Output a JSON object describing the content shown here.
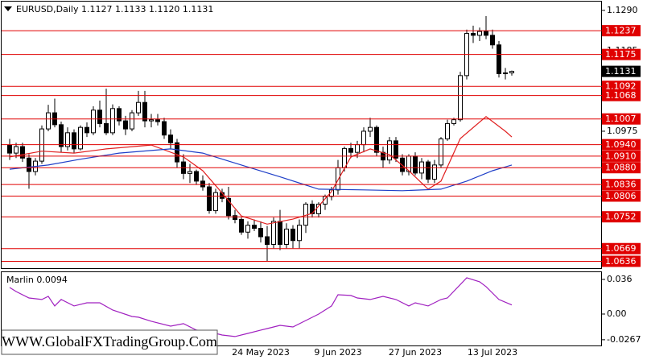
{
  "chart_data": [
    {
      "type": "candlestick",
      "title": "EURUSD,Daily  1.1127 1.1133 1.1120 1.1131",
      "categories": [
        null,
        null,
        null,
        null,
        null,
        null,
        null,
        null,
        null,
        null,
        null,
        null,
        null,
        null,
        null,
        null,
        null,
        null,
        null,
        null,
        null,
        null,
        null,
        null,
        null,
        null,
        null,
        null,
        null,
        null,
        null,
        null,
        null,
        null,
        null,
        null,
        null,
        null,
        null,
        "24 May 2023",
        null,
        null,
        null,
        null,
        null,
        null,
        null,
        null,
        null,
        null,
        null,
        "9 Jun 2023",
        null,
        null,
        null,
        null,
        null,
        null,
        null,
        null,
        null,
        null,
        null,
        "27 Jun 2023",
        null,
        null,
        null,
        null,
        null,
        null,
        null,
        null,
        null,
        null,
        null,
        "13 Jul 2023",
        null,
        null,
        null
      ],
      "open": [
        1.0939,
        1.0918,
        1.0935,
        1.0905,
        1.087,
        1.0897,
        1.0981,
        1.1023,
        1.0992,
        1.0935,
        1.0971,
        1.0929,
        1.0985,
        1.0971,
        1.103,
        1.0995,
        1.0971,
        1.1034,
        1.1002,
        1.0981,
        1.1023,
        1.105,
        1.1002,
        1.1005,
        1.1,
        1.0965,
        1.0945,
        1.0895,
        1.0865,
        1.087,
        1.0845,
        1.083,
        1.0768,
        1.0815,
        1.08,
        1.0755,
        1.0745,
        1.0712,
        1.073,
        1.0722,
        1.07,
        1.068,
        1.074,
        1.068,
        1.072,
        1.069,
        1.073,
        1.0785,
        1.076,
        1.0785,
        1.0805,
        1.0822,
        1.088,
        1.093,
        1.092,
        1.094,
        1.0975,
        1.0985,
        1.092,
        1.09,
        1.095,
        1.0905,
        1.087,
        1.091,
        1.0866,
        1.0895,
        1.085,
        1.0887,
        1.0955,
        1.0995,
        1.1005,
        1.112,
        1.123,
        1.1225,
        1.1235,
        1.1225,
        1.12,
        1.1125,
        1.1127
      ],
      "high": [
        1.0955,
        1.0945,
        1.0945,
        1.0915,
        1.0905,
        1.099,
        1.1044,
        1.106,
        1.1,
        1.0985,
        1.098,
        1.099,
        1.0998,
        1.104,
        1.1055,
        1.1086,
        1.1045,
        1.104,
        1.1015,
        1.103,
        1.108,
        1.108,
        1.102,
        1.102,
        1.101,
        1.098,
        1.0955,
        1.0915,
        1.089,
        1.0875,
        1.086,
        1.084,
        1.0825,
        1.0825,
        1.083,
        1.077,
        1.075,
        1.074,
        1.0745,
        1.074,
        1.0728,
        1.075,
        1.077,
        1.0735,
        1.073,
        1.0745,
        1.079,
        1.0795,
        1.079,
        1.081,
        1.083,
        1.09,
        1.0935,
        1.0945,
        1.095,
        1.0985,
        1.101,
        1.099,
        1.0935,
        1.096,
        1.096,
        1.0915,
        1.0915,
        1.092,
        1.0905,
        1.09,
        1.09,
        1.096,
        1.1005,
        1.101,
        1.113,
        1.124,
        1.125,
        1.1245,
        1.1275,
        1.124,
        1.121,
        1.114,
        1.1133
      ],
      "low": [
        1.09,
        1.0905,
        1.0895,
        1.0825,
        1.086,
        1.089,
        1.0975,
        1.0985,
        1.092,
        1.0925,
        1.0918,
        1.0925,
        1.096,
        1.0965,
        1.0985,
        1.0965,
        1.0965,
        1.099,
        1.0965,
        1.0975,
        1.1015,
        1.0985,
        1.0985,
        1.099,
        1.0955,
        1.093,
        1.088,
        1.085,
        1.084,
        1.0835,
        1.082,
        1.076,
        1.076,
        1.079,
        1.0745,
        1.0735,
        1.0705,
        1.0695,
        1.0715,
        1.0685,
        1.0635,
        1.067,
        1.0665,
        1.067,
        1.067,
        1.067,
        1.071,
        1.075,
        1.075,
        1.077,
        1.0795,
        1.081,
        1.087,
        1.0905,
        1.0905,
        1.092,
        1.096,
        1.091,
        1.088,
        1.089,
        1.0895,
        1.086,
        1.086,
        1.086,
        1.085,
        1.084,
        1.084,
        1.088,
        1.095,
        1.099,
        1.1,
        1.111,
        1.1205,
        1.121,
        1.1215,
        1.119,
        1.1115,
        1.111,
        1.112
      ],
      "close": [
        1.0918,
        1.0935,
        1.0905,
        1.087,
        1.0897,
        1.0981,
        1.1023,
        1.0992,
        1.0935,
        1.0971,
        1.0929,
        1.0985,
        1.0971,
        1.103,
        1.0995,
        1.0971,
        1.1034,
        1.1002,
        1.0981,
        1.1023,
        1.105,
        1.1002,
        1.1005,
        1.1,
        1.0965,
        1.0945,
        1.0895,
        1.0865,
        1.087,
        1.0845,
        1.083,
        1.0768,
        1.0815,
        1.08,
        1.0755,
        1.0745,
        1.0712,
        1.073,
        1.0722,
        1.07,
        1.068,
        1.074,
        1.068,
        1.072,
        1.069,
        1.073,
        1.0785,
        1.076,
        1.0785,
        1.0805,
        1.0822,
        1.088,
        1.093,
        1.092,
        1.094,
        1.0975,
        1.0985,
        1.092,
        1.09,
        1.095,
        1.0905,
        1.087,
        1.091,
        1.0866,
        1.0895,
        1.085,
        1.0887,
        1.0955,
        1.0995,
        1.1005,
        1.112,
        1.123,
        1.1225,
        1.1235,
        1.1225,
        1.12,
        1.1125,
        1.1127,
        1.1131
      ],
      "series": [
        {
          "color": "#e02020",
          "x": [
            0,
            5,
            10,
            15,
            22,
            27,
            30,
            33,
            36,
            40,
            44,
            47,
            50,
            53,
            56,
            59,
            62,
            65,
            67,
            70,
            74,
            77,
            78
          ],
          "values": [
            1.0908,
            1.0923,
            1.0918,
            1.0929,
            1.0939,
            1.0908,
            1.0872,
            1.0814,
            1.0754,
            1.0733,
            1.0746,
            1.0761,
            1.0818,
            1.0908,
            1.0929,
            1.0914,
            1.0872,
            1.0824,
            1.0845,
            1.0956,
            1.1013,
            1.0975,
            1.096
          ]
        },
        {
          "color": "#1f3fc8",
          "x": [
            0,
            6,
            11,
            17,
            25,
            30,
            36,
            42,
            48,
            55,
            61,
            67,
            71,
            75,
            78
          ],
          "values": [
            1.0876,
            1.0887,
            1.0902,
            1.0918,
            1.0929,
            1.0918,
            1.0887,
            1.0856,
            1.0824,
            1.0822,
            1.082,
            1.0824,
            1.0845,
            1.0872,
            1.0887
          ]
        }
      ],
      "levels": [
        1.1237,
        1.1175,
        1.1092,
        1.1068,
        1.1007,
        {
          "value": 1.094,
          "label": "1.0940"
        },
        {
          "value": 1.091,
          "label": "1.0910"
        },
        {
          "value": 1.088,
          "label": "1.0880"
        },
        1.0836,
        1.0806,
        1.0752,
        1.0669,
        1.0636
      ],
      "level_color": "#e00000",
      "last_price": 1.1131,
      "ylim": [
        1.0616,
        1.1317
      ],
      "yticks": [
        {
          "value": 1.129,
          "label": "1.1290"
        },
        1.1185,
        1.0975
      ]
    },
    {
      "type": "line",
      "title": "Marlin 0.0094",
      "series": [
        {
          "color": "#a020c0",
          "x": [
            0,
            1,
            3,
            5,
            6,
            7,
            8,
            10,
            12,
            14,
            16,
            19,
            20,
            22,
            25,
            27,
            29,
            31,
            33,
            35,
            37,
            39,
            40,
            42,
            44,
            46,
            48,
            50,
            51,
            53,
            54,
            56,
            58,
            60,
            62,
            63,
            65,
            67,
            68,
            71,
            73,
            74,
            76,
            78
          ],
          "values": [
            0.0276,
            0.0234,
            0.0167,
            0.0151,
            0.0184,
            0.0084,
            0.0151,
            0.0084,
            0.0117,
            0.0117,
            0.0042,
            -0.0025,
            -0.0033,
            -0.0075,
            -0.0126,
            -0.01,
            -0.0167,
            -0.0184,
            -0.0218,
            -0.0234,
            -0.0201,
            -0.0167,
            -0.0151,
            -0.0117,
            -0.0134,
            -0.0067,
            0,
            0.0084,
            0.0201,
            0.0193,
            0.0167,
            0.0151,
            0.0184,
            0.0151,
            0.0084,
            0.0117,
            0.0084,
            0.0151,
            0.0167,
            0.0377,
            0.0335,
            0.0285,
            0.0151,
            0.0094
          ]
        }
      ],
      "ylim": [
        -0.0335,
        0.0435
      ],
      "yticks": [
        0.036,
        {
          "value": 0,
          "label": "0.00"
        },
        -0.0267
      ]
    }
  ],
  "watermark": "WWW.GlobalFXTradingGroup.Com"
}
